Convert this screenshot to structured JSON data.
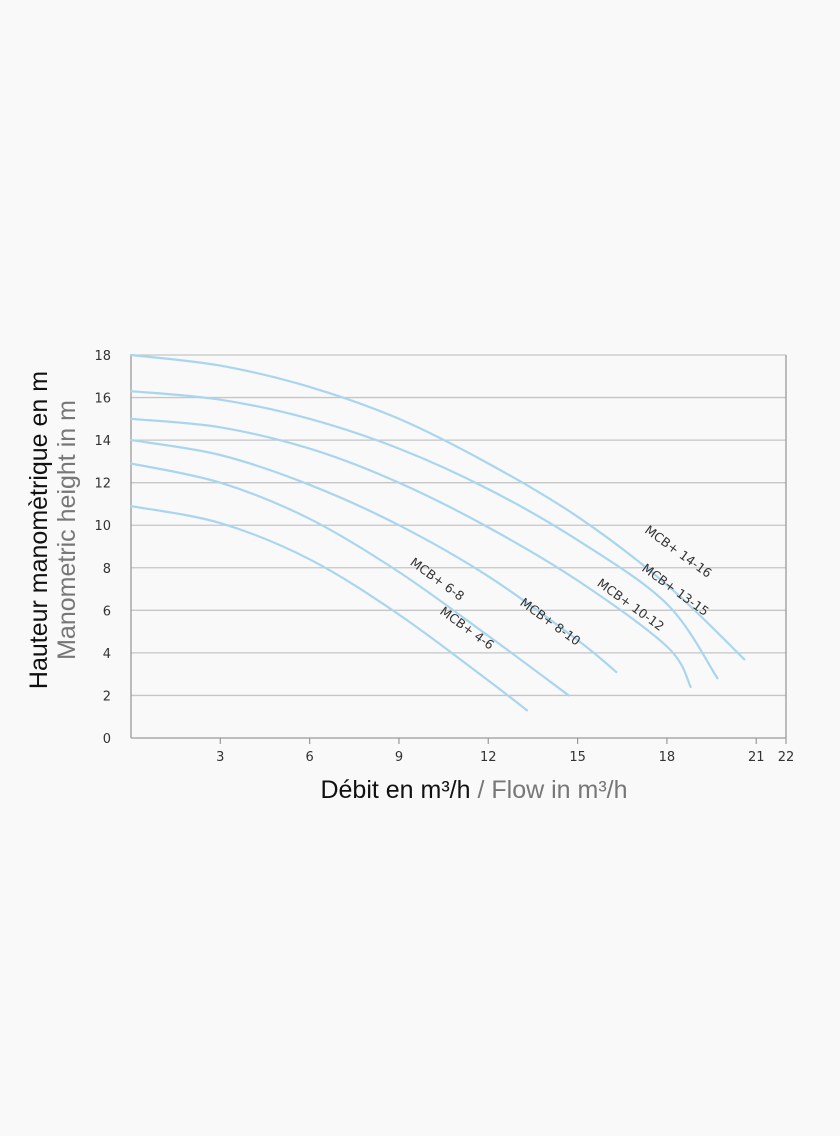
{
  "chart_data": {
    "type": "line",
    "xlabel_primary": "Débit en m³/h",
    "xlabel_sep": " / ",
    "xlabel_secondary": "Flow in m³/h",
    "ylabel_primary": "Hauteur manomètrique en m",
    "ylabel_secondary": "Manometric height in m",
    "xlim": [
      0,
      22
    ],
    "ylim": [
      0,
      18
    ],
    "xticks": [
      3,
      6,
      9,
      12,
      15,
      18,
      21,
      22
    ],
    "yticks": [
      0,
      2,
      4,
      6,
      8,
      10,
      12,
      14,
      16,
      18
    ],
    "grid": "horizontal",
    "colors": {
      "curve": "#a9d6ee",
      "grid": "#c6c6c6",
      "axis": "#9a9a9a"
    },
    "series": [
      {
        "name": "MCB+ 4-6",
        "x": [
          0,
          3,
          6,
          9,
          12,
          13.3
        ],
        "y": [
          10.9,
          10.1,
          8.4,
          5.8,
          2.7,
          1.3
        ]
      },
      {
        "name": "MCB+ 6-8",
        "x": [
          0,
          3,
          6,
          9,
          12,
          14.7
        ],
        "y": [
          12.9,
          12.0,
          10.3,
          7.8,
          4.8,
          2.0
        ]
      },
      {
        "name": "MCB+ 8-10",
        "x": [
          0,
          3,
          6,
          9,
          12,
          15,
          16.3
        ],
        "y": [
          14.0,
          13.3,
          11.9,
          10.0,
          7.6,
          4.6,
          3.1
        ]
      },
      {
        "name": "MCB+ 10-12",
        "x": [
          0,
          3,
          6,
          9,
          12,
          15,
          18,
          18.8
        ],
        "y": [
          15.0,
          14.6,
          13.6,
          12.0,
          9.9,
          7.4,
          4.3,
          2.4
        ]
      },
      {
        "name": "MCB+ 13-15",
        "x": [
          0,
          3,
          6,
          9,
          12,
          15,
          18,
          19.7
        ],
        "y": [
          16.3,
          15.9,
          15.0,
          13.6,
          11.7,
          9.3,
          6.3,
          2.8
        ]
      },
      {
        "name": "MCB+ 14-16",
        "x": [
          0,
          3,
          6,
          9,
          12,
          15,
          18,
          20.6
        ],
        "y": [
          18.0,
          17.5,
          16.5,
          15.0,
          12.9,
          10.4,
          7.2,
          3.7
        ]
      }
    ],
    "labels": [
      {
        "text": "MCB+ 4-6",
        "x": 11.2,
        "y": 5.0,
        "angle": 36
      },
      {
        "text": "MCB+ 6-8",
        "x": 10.2,
        "y": 7.3,
        "angle": 36
      },
      {
        "text": "MCB+ 8-10",
        "x": 14.0,
        "y": 5.3,
        "angle": 36
      },
      {
        "text": "MCB+ 10-12",
        "x": 16.7,
        "y": 6.1,
        "angle": 36
      },
      {
        "text": "MCB+ 13-15",
        "x": 18.2,
        "y": 6.8,
        "angle": 36
      },
      {
        "text": "MCB+ 14-16",
        "x": 18.3,
        "y": 8.6,
        "angle": 36
      }
    ]
  }
}
